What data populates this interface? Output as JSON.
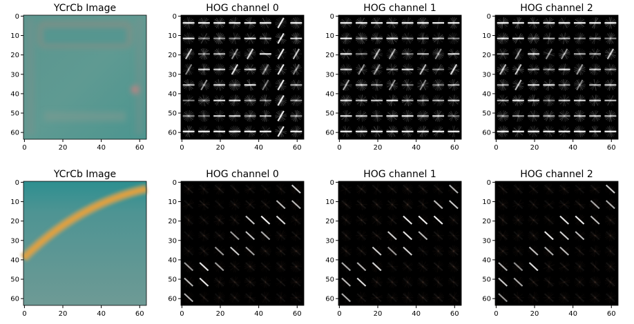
{
  "figure": {
    "background": "#ffffff",
    "panel_background_hog": "#000000"
  },
  "chart_data": [
    {
      "type": "heatmap",
      "kind": "image",
      "title": "YCrCb Image",
      "xlim": [
        0,
        63
      ],
      "ylim": [
        63,
        0
      ],
      "xticks": [
        0,
        20,
        40,
        60
      ],
      "yticks": [
        0,
        10,
        20,
        30,
        40,
        50,
        60
      ],
      "colors": [
        "#5f9c93",
        "#8c8a7e",
        "#3e8f8c"
      ]
    },
    {
      "type": "heatmap",
      "kind": "hog",
      "title": "HOG channel 0",
      "xlim": [
        0,
        63
      ],
      "ylim": [
        63,
        0
      ],
      "xticks": [
        0,
        20,
        40,
        60
      ],
      "yticks": [
        0,
        10,
        20,
        30,
        40,
        50,
        60
      ],
      "colors": [
        "#ffffff"
      ]
    },
    {
      "type": "heatmap",
      "kind": "hog",
      "title": "HOG channel 1",
      "xlim": [
        0,
        63
      ],
      "ylim": [
        63,
        0
      ],
      "xticks": [
        0,
        20,
        40,
        60
      ],
      "yticks": [
        0,
        10,
        20,
        30,
        40,
        50,
        60
      ],
      "colors": [
        "#ffffff"
      ]
    },
    {
      "type": "heatmap",
      "kind": "hog",
      "title": "HOG channel 2",
      "xlim": [
        0,
        63
      ],
      "ylim": [
        63,
        0
      ],
      "xticks": [
        0,
        20,
        40,
        60
      ],
      "yticks": [
        0,
        10,
        20,
        30,
        40,
        50,
        60
      ],
      "colors": [
        "#ffffff"
      ]
    },
    {
      "type": "heatmap",
      "kind": "image",
      "title": "YCrCb Image",
      "xlim": [
        0,
        63
      ],
      "ylim": [
        63,
        0
      ],
      "xticks": [
        0,
        20,
        40,
        60
      ],
      "yticks": [
        0,
        10,
        20,
        30,
        40,
        50,
        60
      ],
      "colors": [
        "#5e9493",
        "#2c9092",
        "#d9a04a"
      ]
    },
    {
      "type": "heatmap",
      "kind": "hog",
      "title": "HOG channel 0",
      "xlim": [
        0,
        63
      ],
      "ylim": [
        63,
        0
      ],
      "xticks": [
        0,
        20,
        40,
        60
      ],
      "yticks": [
        0,
        10,
        20,
        30,
        40,
        50,
        60
      ],
      "colors": [
        "#ffffff",
        "#2a1712"
      ]
    },
    {
      "type": "heatmap",
      "kind": "hog",
      "title": "HOG channel 1",
      "xlim": [
        0,
        63
      ],
      "ylim": [
        63,
        0
      ],
      "xticks": [
        0,
        20,
        40,
        60
      ],
      "yticks": [
        0,
        10,
        20,
        30,
        40,
        50,
        60
      ],
      "colors": [
        "#ffffff",
        "#2a1712"
      ]
    },
    {
      "type": "heatmap",
      "kind": "hog",
      "title": "HOG channel 2",
      "xlim": [
        0,
        63
      ],
      "ylim": [
        63,
        0
      ],
      "xticks": [
        0,
        20,
        40,
        60
      ],
      "yticks": [
        0,
        10,
        20,
        30,
        40,
        50,
        60
      ],
      "colors": [
        "#ffffff",
        "#2a1712"
      ]
    }
  ]
}
